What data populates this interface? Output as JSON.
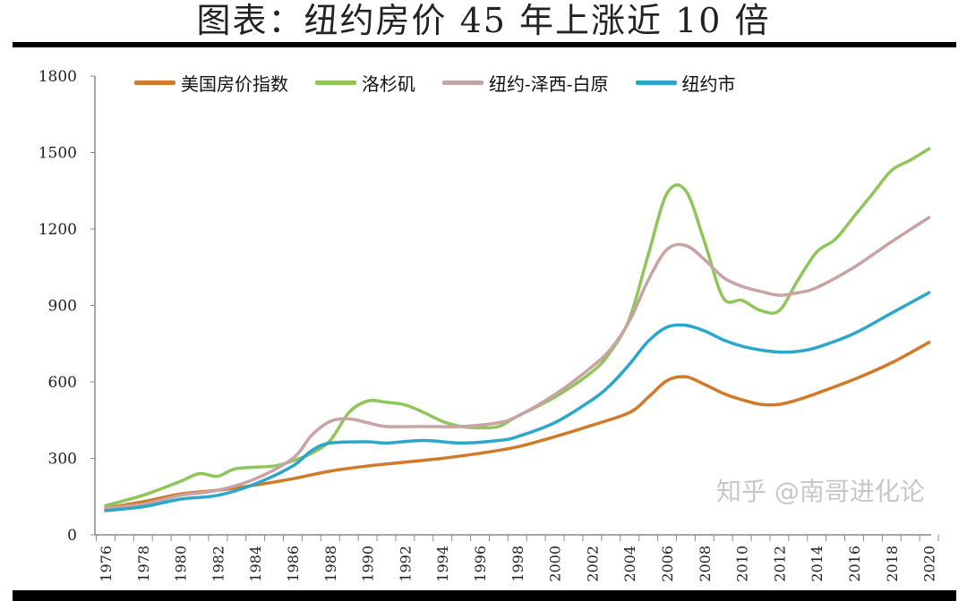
{
  "chart_data": {
    "type": "line",
    "title": "图表：纽约房价 45 年上涨近 10 倍",
    "xlabel": "",
    "ylabel": "",
    "ylim": [
      0,
      1800
    ],
    "yticks": [
      "0",
      "300",
      "600",
      "900",
      "1200",
      "1500",
      "1800"
    ],
    "xticks": [
      "1976",
      "1978",
      "1980",
      "1982",
      "1984",
      "1986",
      "1988",
      "1990",
      "1992",
      "1994",
      "1996",
      "1998",
      "2000",
      "2002",
      "2004",
      "2006",
      "2008",
      "2010",
      "2012",
      "2014",
      "2016",
      "2018",
      "2020"
    ],
    "xlim": [
      1976,
      2020
    ],
    "grid": false,
    "legend_position": "top",
    "series": [
      {
        "name": "美国房价指数",
        "color": "#d07a2a",
        "x": [
          1976,
          1978,
          1980,
          1982,
          1984,
          1986,
          1988,
          1990,
          1992,
          1994,
          1996,
          1998,
          2000,
          2002,
          2004,
          2005,
          2006,
          2007,
          2008,
          2009,
          2010,
          2011,
          2012,
          2013,
          2014,
          2016,
          2018,
          2020
        ],
        "y": [
          105,
          130,
          160,
          175,
          195,
          220,
          250,
          270,
          285,
          300,
          320,
          345,
          385,
          430,
          480,
          540,
          605,
          620,
          590,
          555,
          530,
          512,
          512,
          530,
          555,
          610,
          675,
          755
        ]
      },
      {
        "name": "洛杉矶",
        "color": "#8fc65a",
        "x": [
          1976,
          1978,
          1980,
          1981,
          1982,
          1983,
          1985,
          1986,
          1987,
          1988,
          1989,
          1990,
          1991,
          1992,
          1993,
          1994,
          1995,
          1996,
          1997,
          1998,
          2000,
          2002,
          2003,
          2004,
          2005,
          2006,
          2007,
          2008,
          2009,
          2010,
          2011,
          2012,
          2013,
          2014,
          2015,
          2016,
          2017,
          2018,
          2019,
          2020
        ],
        "y": [
          115,
          155,
          210,
          240,
          230,
          260,
          270,
          290,
          320,
          370,
          480,
          525,
          520,
          510,
          480,
          445,
          425,
          420,
          425,
          465,
          540,
          640,
          720,
          850,
          1100,
          1340,
          1350,
          1150,
          930,
          920,
          880,
          880,
          1000,
          1110,
          1160,
          1250,
          1340,
          1430,
          1470,
          1515
        ]
      },
      {
        "name": "纽约-泽西-白原",
        "color": "#c9a3a3",
        "x": [
          1976,
          1978,
          1980,
          1982,
          1984,
          1986,
          1987,
          1988,
          1989,
          1990,
          1991,
          1993,
          1995,
          1997,
          1998,
          2000,
          2002,
          2003,
          2004,
          2005,
          2006,
          2007,
          2008,
          2009,
          2010,
          2011,
          2012,
          2013,
          2014,
          2016,
          2018,
          2020
        ],
        "y": [
          105,
          120,
          155,
          175,
          220,
          300,
          390,
          445,
          455,
          440,
          425,
          425,
          425,
          440,
          465,
          550,
          660,
          730,
          840,
          1000,
          1120,
          1135,
          1080,
          1010,
          975,
          955,
          940,
          950,
          970,
          1050,
          1150,
          1245
        ]
      },
      {
        "name": "纽约市",
        "color": "#2aa7c9",
        "x": [
          1976,
          1978,
          1980,
          1982,
          1984,
          1986,
          1987,
          1988,
          1990,
          1991,
          1993,
          1995,
          1997,
          1998,
          2000,
          2002,
          2003,
          2004,
          2005,
          2006,
          2007,
          2008,
          2009,
          2010,
          2011,
          2012,
          2013,
          2014,
          2016,
          2018,
          2020
        ],
        "y": [
          95,
          110,
          140,
          155,
          200,
          270,
          330,
          360,
          365,
          360,
          370,
          360,
          370,
          385,
          440,
          530,
          590,
          670,
          760,
          815,
          822,
          800,
          765,
          740,
          725,
          717,
          720,
          735,
          790,
          870,
          950
        ]
      }
    ]
  },
  "watermark": "知乎 @南哥进化论"
}
